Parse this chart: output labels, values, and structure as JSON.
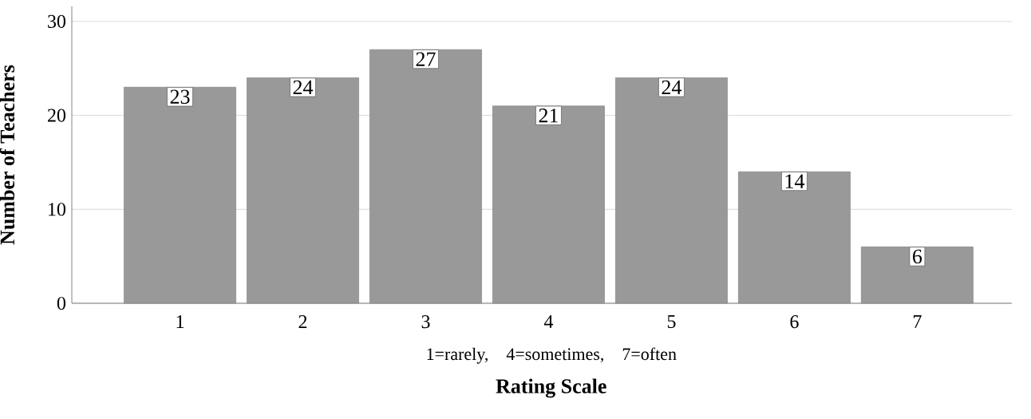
{
  "chart_data": {
    "type": "bar",
    "xlabel": "Rating Scale",
    "ylabel": "Number of Teachers",
    "annotations": [
      "1=rarely,     4=sometimes,     7=often"
    ],
    "categories": [
      "1",
      "2",
      "3",
      "4",
      "5",
      "6",
      "7"
    ],
    "values": [
      23,
      24,
      27,
      21,
      24,
      14,
      6
    ],
    "color": "#999999",
    "ylim": [
      0,
      31.6
    ],
    "yticks": [
      0,
      10,
      20,
      30
    ],
    "grid": "y",
    "data_labels": true
  }
}
